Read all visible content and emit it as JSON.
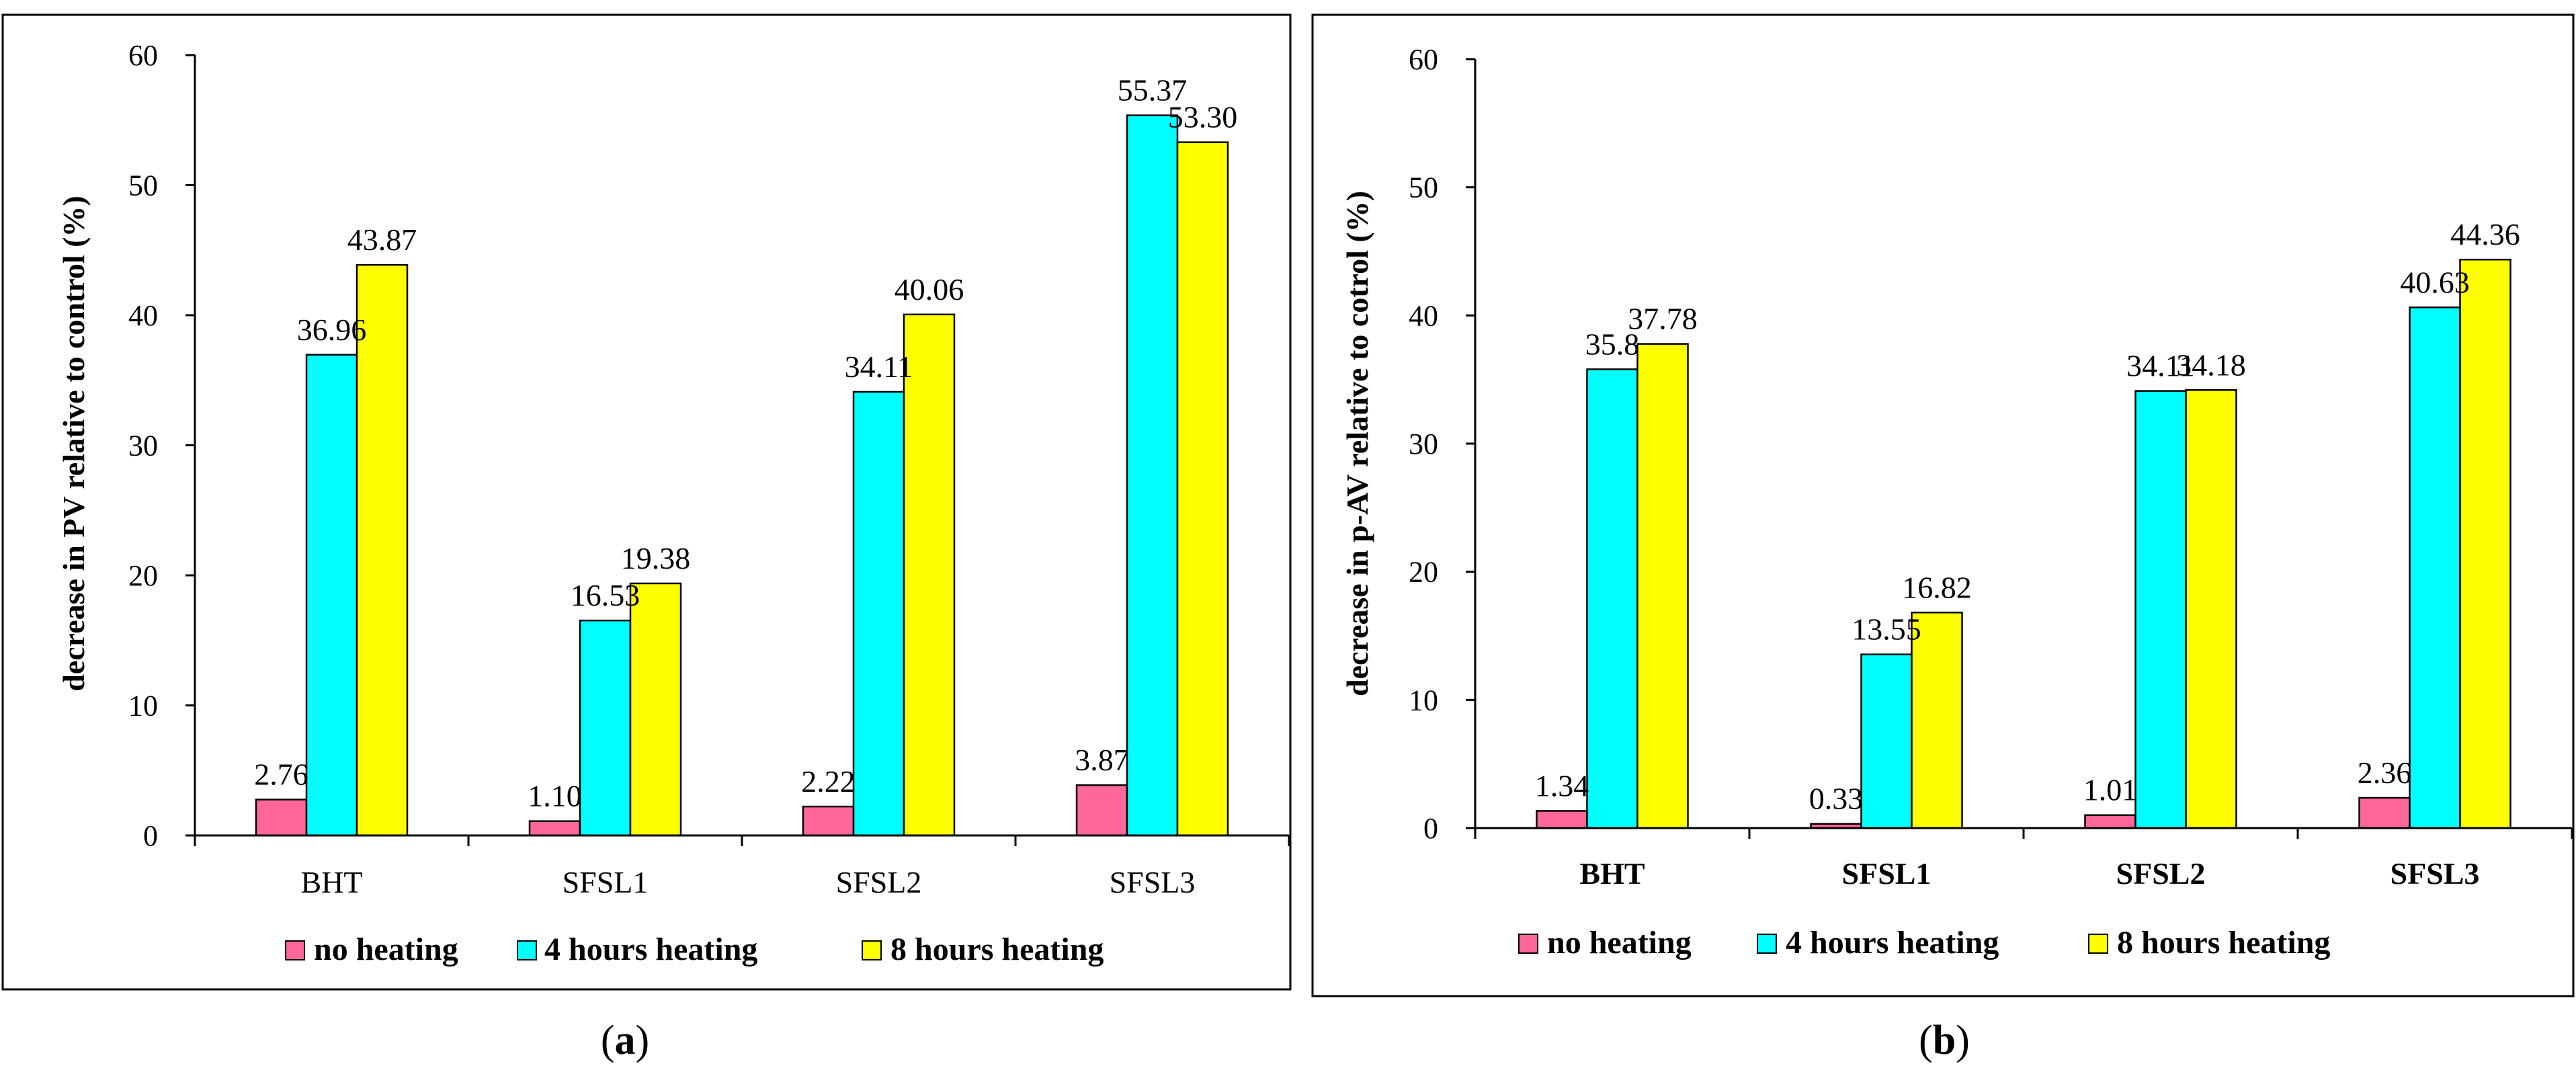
{
  "colors": {
    "no_heating": "#ff6699",
    "four_hours": "#00ffff",
    "eight_hours": "#ffff00"
  },
  "chart_data": [
    {
      "type": "bar",
      "panel_label": "(a)",
      "panel_letter": "a",
      "categories": [
        "BHT",
        "SFSL1",
        "SFSL2",
        "SFSL3"
      ],
      "series": [
        {
          "name": "no heating",
          "values": [
            2.76,
            1.1,
            2.22,
            3.87
          ],
          "labels": [
            "2.76",
            "1.10",
            "2.22",
            "3.87"
          ]
        },
        {
          "name": "4 hours heating",
          "values": [
            36.96,
            16.53,
            34.11,
            55.37
          ],
          "labels": [
            "36.96",
            "16.53",
            "34.11",
            "55.37"
          ]
        },
        {
          "name": "8 hours heating",
          "values": [
            43.87,
            19.38,
            40.06,
            53.3
          ],
          "labels": [
            "43.87",
            "19.38",
            "40.06",
            "53.30"
          ]
        }
      ],
      "ylabel": "decrease in PV relative to control (%)",
      "xlabel": "",
      "ylim": [
        0,
        60
      ],
      "yticks": [
        "0",
        "10",
        "20",
        "30",
        "40",
        "50",
        "60"
      ],
      "legend_position": "bottom"
    },
    {
      "type": "bar",
      "panel_label": "(b)",
      "panel_letter": "b",
      "categories": [
        "BHT",
        "SFSL1",
        "SFSL2",
        "SFSL3"
      ],
      "series": [
        {
          "name": "no heating",
          "values": [
            1.34,
            0.33,
            1.01,
            2.36
          ],
          "labels": [
            "1.34",
            "0.33",
            "1.01",
            "2.36"
          ]
        },
        {
          "name": "4 hours heating",
          "values": [
            35.8,
            13.55,
            34.11,
            40.63
          ],
          "labels": [
            "35.8",
            "13.55",
            "34.11",
            "40.63"
          ]
        },
        {
          "name": "8 hours heating",
          "values": [
            37.78,
            16.82,
            34.18,
            44.36
          ],
          "labels": [
            "37.78",
            "16.82",
            "34.18",
            "44.36"
          ]
        }
      ],
      "ylabel": "decrease in p-AV relative to cotrol (%)",
      "xlabel": "",
      "ylim": [
        0,
        60
      ],
      "yticks": [
        "0",
        "10",
        "20",
        "30",
        "40",
        "50",
        "60"
      ],
      "legend_position": "bottom"
    }
  ]
}
